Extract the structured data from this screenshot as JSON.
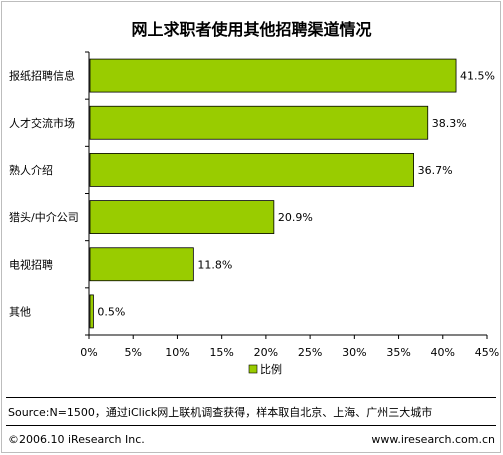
{
  "chart_data": {
    "type": "bar",
    "orientation": "horizontal",
    "title": "网上求职者使用其他招聘渠道情况",
    "categories": [
      "报纸招聘信息",
      "人才交流市场",
      "熟人介绍",
      "猎头/中介公司",
      "电视招聘",
      "其他"
    ],
    "series": [
      {
        "name": "比例",
        "values": [
          41.5,
          38.3,
          36.7,
          20.9,
          11.8,
          0.5
        ],
        "labels": [
          "41.5%",
          "38.3%",
          "36.7%",
          "20.9%",
          "11.8%",
          "0.5%"
        ]
      }
    ],
    "xlim": [
      0,
      45
    ],
    "xticks": [
      "0%",
      "5%",
      "10%",
      "15%",
      "20%",
      "25%",
      "30%",
      "35%",
      "40%",
      "45%"
    ],
    "grid": false,
    "legend": "bottom",
    "bar_color": "#99cc00"
  },
  "footer": {
    "source": "Source:N=1500，通过iClick网上联机调查获得，样本取自北京、上海、广州三大城市",
    "copyright": "©2006.10 iResearch Inc.",
    "website": "www.iresearch.com.cn"
  }
}
